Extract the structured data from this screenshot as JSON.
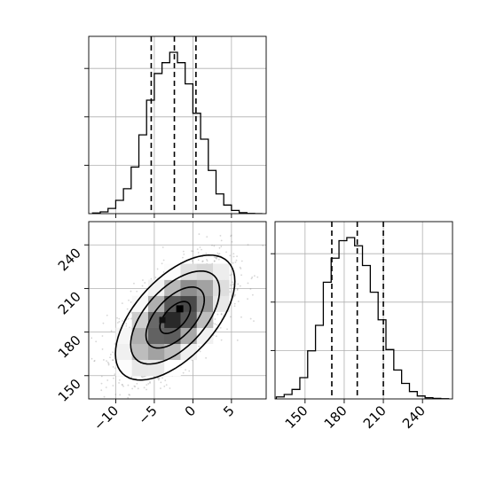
{
  "chart_data": [
    {
      "panel": "top-left",
      "type": "histogram",
      "title": "",
      "xlabel": "",
      "ylabel": "",
      "xlim": [
        -13.5,
        9.5
      ],
      "grid": true,
      "bin_edges": [
        -13,
        -12,
        -11,
        -10,
        -9,
        -8,
        -7,
        -6,
        -5,
        -4,
        -3,
        -2,
        -1,
        0,
        1,
        2,
        3,
        4,
        5,
        6,
        7,
        8,
        9
      ],
      "counts": [
        0.4,
        1.1,
        3.2,
        8.2,
        15.4,
        28.8,
        48.7,
        70.1,
        86.6,
        93.3,
        99.7,
        93.3,
        80.2,
        62.0,
        46.0,
        26.7,
        12.2,
        5.3,
        2.0,
        0.6,
        0.1,
        0.0
      ],
      "quantile_lines": [
        -5.4,
        -2.4,
        0.4
      ],
      "line_style": "dashed"
    },
    {
      "panel": "bottom-left",
      "type": "scatter-density",
      "title": "",
      "xlabel": "",
      "ylabel": "",
      "xlim": [
        -13.5,
        9.5
      ],
      "ylim": [
        134,
        256
      ],
      "grid": true,
      "x_ticks": [
        "−10",
        "−5",
        "0",
        "5"
      ],
      "x_tick_values": [
        -10,
        -5,
        0,
        5
      ],
      "y_ticks": [
        "150",
        "180",
        "210",
        "240"
      ],
      "y_tick_values": [
        150,
        180,
        210,
        240
      ],
      "center": [
        -2.3,
        190
      ],
      "contour_levels": 4,
      "color": "#000000"
    },
    {
      "panel": "bottom-right",
      "type": "histogram",
      "title": "",
      "xlabel": "",
      "ylabel": "",
      "xlim": [
        127,
        263
      ],
      "grid": true,
      "x_ticks": [
        "150",
        "180",
        "210",
        "240"
      ],
      "x_tick_values": [
        150,
        180,
        210,
        240
      ],
      "bin_edges": [
        128,
        134,
        140,
        146,
        152,
        158,
        164,
        170,
        176,
        182,
        188,
        194,
        200,
        206,
        212,
        218,
        224,
        230,
        236,
        242,
        248,
        254,
        260
      ],
      "counts": [
        1.2,
        2.7,
        5.8,
        13.0,
        29.4,
        45.0,
        71.4,
        86.1,
        96.8,
        98.7,
        93.7,
        81.6,
        65.3,
        48.4,
        30.2,
        17.7,
        9.5,
        4.5,
        1.8,
        0.7,
        0.3,
        0.1
      ],
      "quantile_lines": [
        170.5,
        190.0,
        210.0
      ],
      "line_style": "dashed"
    }
  ]
}
